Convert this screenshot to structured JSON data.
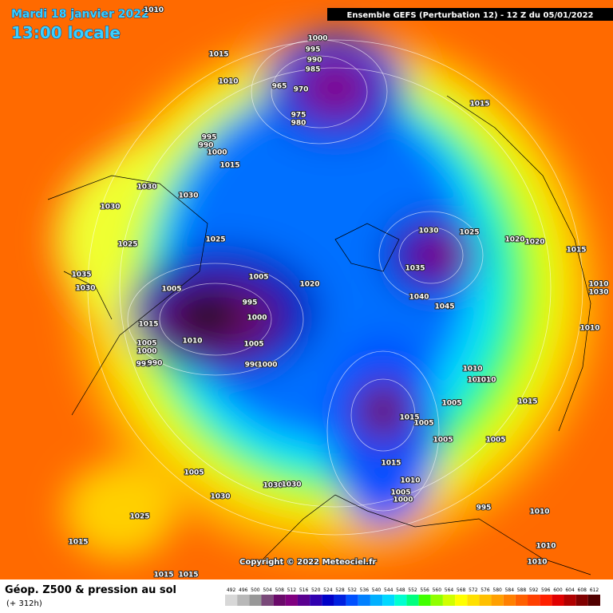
{
  "header": {
    "date": "Mardi 18 janvier 2022",
    "time": "13:00 locale",
    "run": "Ensemble GEFS  (Perturbation 12)  -  12 Z du 05/01/2022",
    "corner_label": "1010"
  },
  "footer": {
    "title": "Géop. Z500 & pression au sol",
    "lead": "(+ 312h)",
    "copyright": "Copyright © 2022 Meteociel.fr"
  },
  "isobar_labels": [
    "1000",
    "995",
    "990",
    "985",
    "965",
    "970",
    "975",
    "980",
    "1015",
    "1010",
    "995",
    "990",
    "1000",
    "1015",
    "1030",
    "1030",
    "1030",
    "1025",
    "1025",
    "1035",
    "1030",
    "1005",
    "1005",
    "1020",
    "995",
    "1000",
    "1015",
    "1010",
    "1005",
    "1005",
    "1000",
    "995",
    "990",
    "990",
    "1000",
    "1030",
    "1025",
    "1020",
    "1020",
    "1035",
    "1040",
    "1045",
    "1015",
    "1010",
    "1010",
    "1010",
    "1015",
    "1010",
    "1005",
    "1015",
    "1015",
    "1005",
    "1005",
    "1005",
    "1015",
    "1010",
    "1005",
    "1000",
    "995",
    "1010",
    "1010",
    "1010",
    "1005",
    "1030",
    "1030",
    "1030",
    "1025",
    "1015",
    "1015",
    "1015",
    "1015",
    "1030"
  ],
  "legend": {
    "values": [
      492,
      496,
      500,
      504,
      508,
      512,
      516,
      520,
      524,
      528,
      532,
      536,
      540,
      544,
      548,
      552,
      556,
      560,
      564,
      568,
      572,
      576,
      580,
      584,
      588,
      592,
      596,
      600,
      604,
      608,
      612
    ],
    "colors": [
      "#d8d8d8",
      "#b8b8b8",
      "#989898",
      "#7a4a7a",
      "#6a0a6a",
      "#800080",
      "#5a0090",
      "#3000b0",
      "#0000c8",
      "#0020e0",
      "#0050ff",
      "#0080ff",
      "#00b0ff",
      "#00d8ff",
      "#00ffd0",
      "#00ff80",
      "#40ff00",
      "#90ff00",
      "#d0ff00",
      "#ffff00",
      "#ffe000",
      "#ffc000",
      "#ffa000",
      "#ff8000",
      "#ff6000",
      "#ff4000",
      "#ff2000",
      "#e00000",
      "#b00000",
      "#800000",
      "#500000"
    ]
  }
}
